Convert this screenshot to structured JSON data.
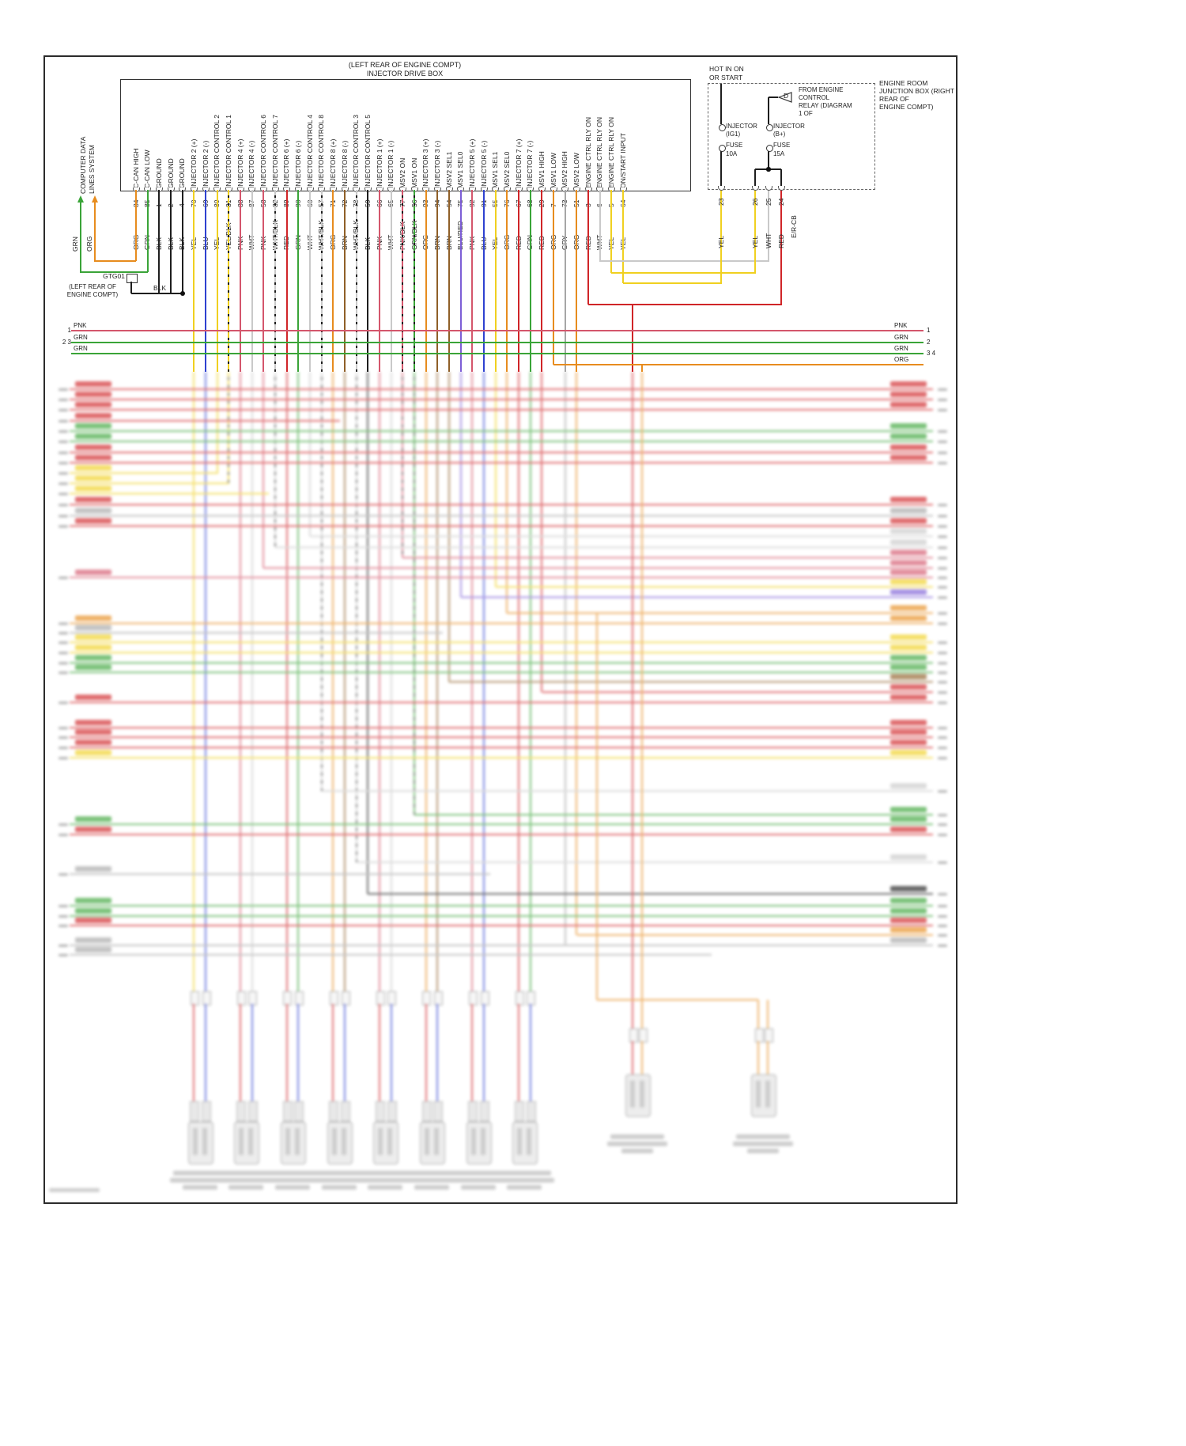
{
  "header": {
    "box_location": "(LEFT REAR OF ENGINE COMPT)",
    "box_name": "INJECTOR DRIVE BOX"
  },
  "computer_data": {
    "lines": [
      "COMPUTER DATA",
      "LINES SYSTEM"
    ],
    "arrow_labels": [
      "GRN",
      "ORG"
    ]
  },
  "ground_point": {
    "id": "GTG01",
    "location_lines": [
      "(LEFT REAR OF",
      "ENGINE COMPT)"
    ],
    "wire_color": "BLK"
  },
  "pins": [
    {
      "label": "C-CAN HIGH",
      "pin": "84",
      "color": "ORG"
    },
    {
      "label": "C-CAN LOW",
      "pin": "85",
      "color": "GRN"
    },
    {
      "label": "GROUND",
      "pin": "1",
      "color": "BLK"
    },
    {
      "label": "GROUND",
      "pin": "2",
      "color": "BLK"
    },
    {
      "label": "GROUND",
      "pin": "4",
      "color": "BLK"
    },
    {
      "label": "INJECTOR 2 (+)",
      "pin": "70",
      "color": "YEL"
    },
    {
      "label": "INJECTOR 2 (-)",
      "pin": "69",
      "color": "BLU"
    },
    {
      "label": "INJECTOR CONTROL 2",
      "pin": "80",
      "color": "YEL"
    },
    {
      "label": "INJECTOR CONTROL 1",
      "pin": "81",
      "color": "YEL/BLK"
    },
    {
      "label": "INJECTOR 4 (+)",
      "pin": "88",
      "color": "PNK"
    },
    {
      "label": "INJECTOR 4 (-)",
      "pin": "87",
      "color": "WHT"
    },
    {
      "label": "INJECTOR CONTROL 6",
      "pin": "58",
      "color": "PNK"
    },
    {
      "label": "INJECTOR CONTROL 7",
      "pin": "82",
      "color": "WHT/BLK"
    },
    {
      "label": "INJECTOR 6 (+)",
      "pin": "89",
      "color": "RED"
    },
    {
      "label": "INJECTOR 6 (-)",
      "pin": "90",
      "color": "GRN"
    },
    {
      "label": "INJECTOR CONTROL 4",
      "pin": "60",
      "color": "WHT"
    },
    {
      "label": "INJECTOR CONTROL 8",
      "pin": "57",
      "color": "WHT/BLK"
    },
    {
      "label": "INJECTOR 8 (+)",
      "pin": "71",
      "color": "ORG"
    },
    {
      "label": "INJECTOR 8 (-)",
      "pin": "72",
      "color": "BRN"
    },
    {
      "label": "INJECTOR CONTROL 3",
      "pin": "78",
      "color": "WHT/BLK"
    },
    {
      "label": "INJECTOR CONTROL 5",
      "pin": "59",
      "color": "BLK"
    },
    {
      "label": "INJECTOR 1 (+)",
      "pin": "66",
      "color": "PNK"
    },
    {
      "label": "INJECTOR 1 (-)",
      "pin": "65",
      "color": "WHT"
    },
    {
      "label": "MSV2 ON",
      "pin": "77",
      "color": "PNK/BLK"
    },
    {
      "label": "MSV1 ON",
      "pin": "56",
      "color": "GRN/BLK"
    },
    {
      "label": "INJECTOR 3 (+)",
      "pin": "93",
      "color": "ORG"
    },
    {
      "label": "INJECTOR 3 (-)",
      "pin": "94",
      "color": "BRN"
    },
    {
      "label": "MSV2 SEL1",
      "pin": "54",
      "color": "BRN"
    },
    {
      "label": "MSV1 SEL0",
      "pin": "75",
      "color": "BLU/RED"
    },
    {
      "label": "INJECTOR 5 (+)",
      "pin": "92",
      "color": "PNK"
    },
    {
      "label": "INJECTOR 5 (-)",
      "pin": "91",
      "color": "BLU"
    },
    {
      "label": "MSV1 SEL1",
      "pin": "55",
      "color": "YEL"
    },
    {
      "label": "MSV2 SEL0",
      "pin": "76",
      "color": "ORG"
    },
    {
      "label": "INJECTOR 7 (+)",
      "pin": "67",
      "color": "RED"
    },
    {
      "label": "INJECTOR 7 (-)",
      "pin": "68",
      "color": "GRN"
    },
    {
      "label": "MSV1 HIGH",
      "pin": "29",
      "color": "RED"
    },
    {
      "label": "MSV1 LOW",
      "pin": "7",
      "color": "ORG"
    },
    {
      "label": "MSV2 HIGH",
      "pin": "73",
      "color": "GRY"
    },
    {
      "label": "MSV2 LOW",
      "pin": "51",
      "color": "ORG"
    },
    {
      "label": "ENGINE CTRL RLY ON",
      "pin": "3",
      "color": "RED"
    },
    {
      "label": "ENGINE CTRL RLY ON",
      "pin": "6",
      "color": "WHT"
    },
    {
      "label": "ENGINE CTRL RLY ON",
      "pin": "5",
      "color": "YEL"
    },
    {
      "label": "ON/START INPUT",
      "pin": "64",
      "color": "YEL"
    }
  ],
  "hot_box": {
    "title_lines": [
      "HOT IN ON",
      "OR START"
    ],
    "fuse1_lines": [
      "INJECTOR",
      "(IG1)",
      "FUSE",
      "10A"
    ],
    "fuse2_lines": [
      "INJECTOR",
      "(B+)",
      "FUSE",
      "15A"
    ],
    "relay_symbol": "D",
    "relay_note_lines": [
      "FROM ENGINE",
      "CONTROL",
      "RELAY (DIAGRAM",
      "1 OF"
    ],
    "pins": [
      {
        "num": "23",
        "color": "YEL"
      },
      {
        "num": "26",
        "color": "YEL"
      },
      {
        "num": "25",
        "color": "WHT"
      },
      {
        "num": "24",
        "color": "RED"
      },
      {
        "num": "E/R-CB",
        "color": ""
      }
    ]
  },
  "junction_box_note_lines": [
    "ENGINE ROOM",
    "JUNCTION BOX (RIGHT",
    "REAR OF",
    "ENGINE COMPT)"
  ],
  "bus_rows": [
    {
      "left_num": "1",
      "left_label": "PNK",
      "right_label": "PNK",
      "right_num": "1",
      "color": "PNK"
    },
    {
      "left_num": "2 3",
      "left_label": "GRN",
      "right_label": "GRN",
      "right_num": "2",
      "color": "GRN"
    },
    {
      "left_num": "",
      "left_label": "GRN",
      "right_label": "GRN",
      "right_num": "3 4",
      "color": "GRN"
    },
    {
      "left_num": "",
      "left_label": "",
      "right_label": "ORG",
      "right_num": "",
      "color": "ORG"
    }
  ],
  "wire_colors": {
    "ORG": "#e78c1e",
    "GRN": "#3aa438",
    "BLK": "#1e1e1e",
    "YEL": "#f0d020",
    "BLU": "#2e41d0",
    "PNK": "#d4566c",
    "WHT": "#c9c9c9",
    "RED": "#d02528",
    "BRN": "#8f5f28",
    "GRY": "#a6a6a6",
    "BLU/RED": "#7d5ed6"
  }
}
